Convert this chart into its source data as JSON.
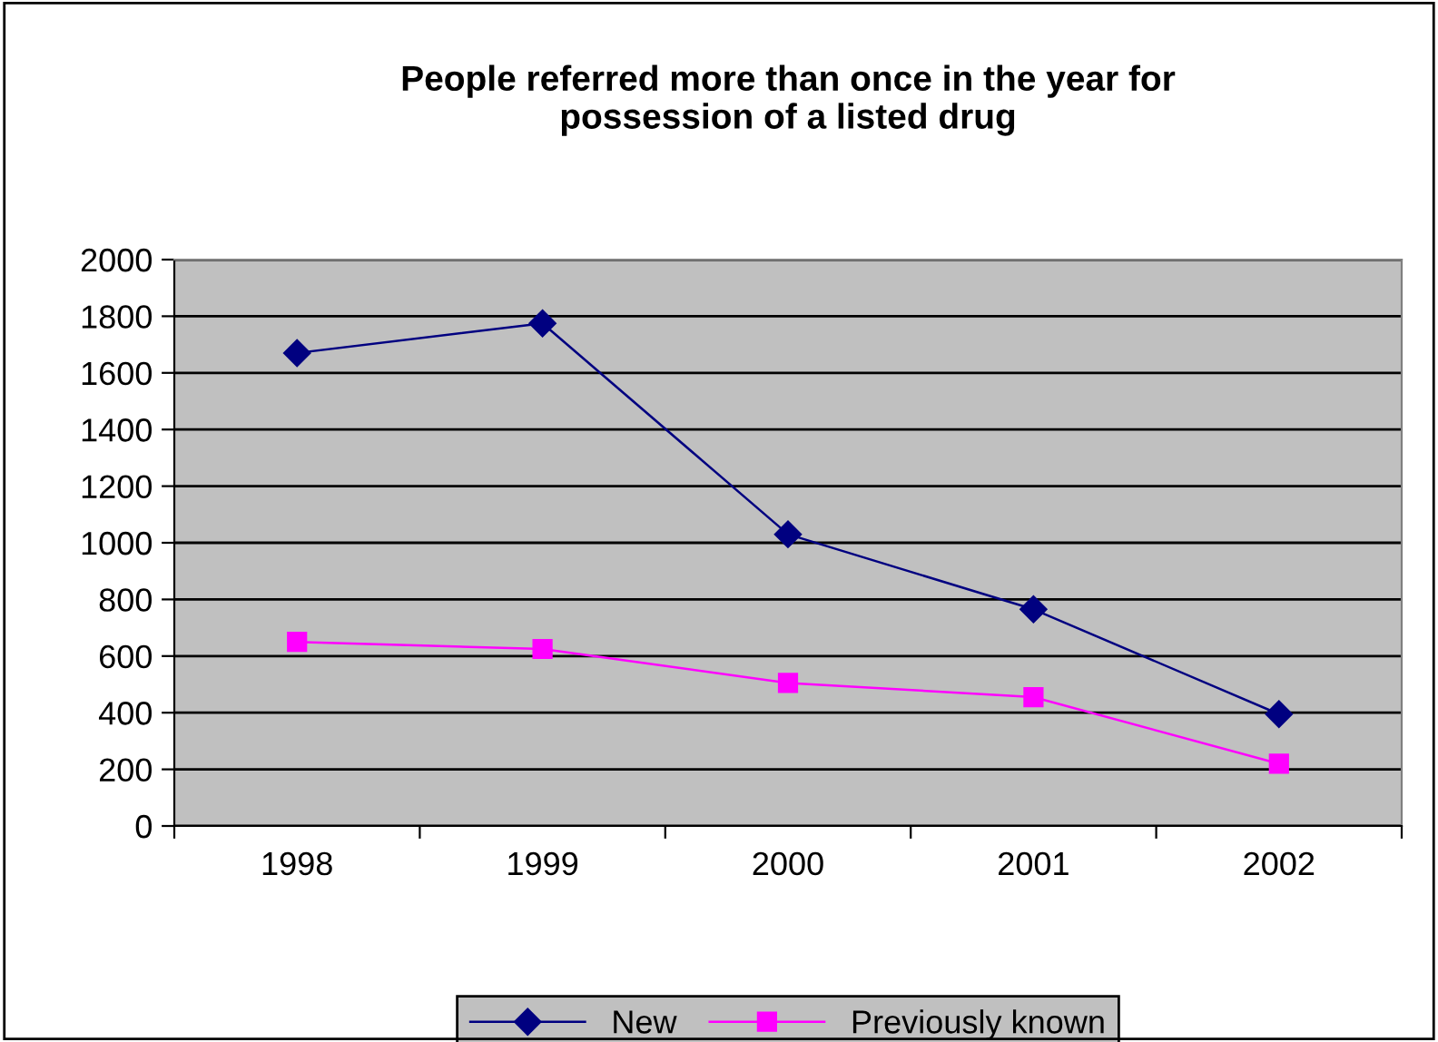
{
  "chart_data": {
    "type": "line",
    "title": "People referred more than once in the year for\npossession of a listed drug",
    "categories": [
      "1998",
      "1999",
      "2000",
      "2001",
      "2002"
    ],
    "series": [
      {
        "name": "New",
        "color": "#000080",
        "marker": "diamond",
        "values": [
          1670,
          1775,
          1030,
          765,
          395
        ]
      },
      {
        "name": "Previously known",
        "color": "#ff00ff",
        "marker": "square",
        "values": [
          650,
          625,
          505,
          455,
          220
        ]
      }
    ],
    "ylim": [
      0,
      2000
    ],
    "yticks": [
      0,
      200,
      400,
      600,
      800,
      1000,
      1200,
      1400,
      1600,
      1800,
      2000
    ],
    "grid": "y",
    "legend": "bottom"
  }
}
